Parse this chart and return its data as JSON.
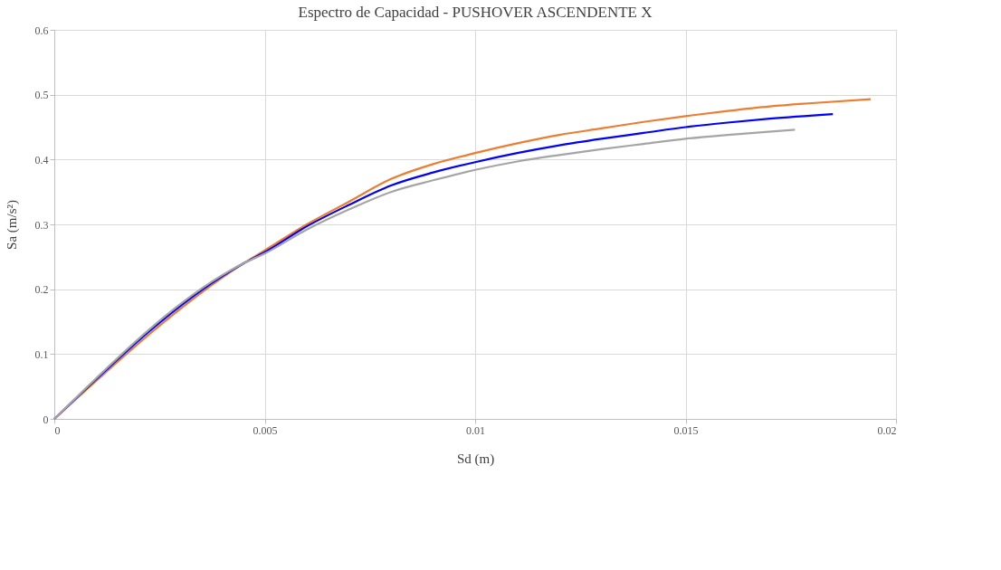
{
  "chart_data": {
    "type": "line",
    "title": "Espectro de Capacidad - PUSHOVER ASCENDENTE X",
    "xlabel": "Sd (m)",
    "ylabel": "Sa (m/s²)",
    "xlim": [
      0,
      0.02
    ],
    "xticks": [
      0,
      0.005,
      0.01,
      0.015,
      0.02
    ],
    "ylim": [
      0,
      0.6
    ],
    "yticks": [
      0,
      0.1,
      0.2,
      0.3,
      0.4,
      0.5,
      0.6
    ],
    "grid": true,
    "legend": false,
    "marker": "none",
    "line_style": "solid",
    "series": [
      {
        "color": "#ed7d31",
        "x": [
          0,
          0.0045,
          0.005,
          0.006,
          0.007,
          0.008,
          0.009,
          0.01,
          0.011,
          0.012,
          0.013,
          0.014,
          0.015,
          0.016,
          0.017,
          0.018,
          0.0194
        ],
        "values": [
          0,
          0.24,
          0.26,
          0.3,
          0.335,
          0.37,
          0.393,
          0.41,
          0.425,
          0.438,
          0.448,
          0.458,
          0.467,
          0.475,
          0.482,
          0.487,
          0.493
        ]
      },
      {
        "color": "#0000ff",
        "x": [
          0,
          0.0045,
          0.005,
          0.006,
          0.007,
          0.008,
          0.009,
          0.01,
          0.011,
          0.012,
          0.013,
          0.014,
          0.015,
          0.016,
          0.017,
          0.0185
        ],
        "values": [
          0,
          0.24,
          0.257,
          0.297,
          0.33,
          0.36,
          0.38,
          0.396,
          0.41,
          0.422,
          0.432,
          0.441,
          0.45,
          0.457,
          0.463,
          0.47
        ]
      },
      {
        "color": "#a5a5a5",
        "x": [
          0,
          0.0045,
          0.005,
          0.006,
          0.007,
          0.008,
          0.009,
          0.01,
          0.011,
          0.012,
          0.013,
          0.014,
          0.015,
          0.016,
          0.0176
        ],
        "values": [
          0,
          0.24,
          0.255,
          0.292,
          0.323,
          0.35,
          0.368,
          0.384,
          0.397,
          0.407,
          0.416,
          0.424,
          0.432,
          0.438,
          0.446
        ]
      }
    ]
  }
}
